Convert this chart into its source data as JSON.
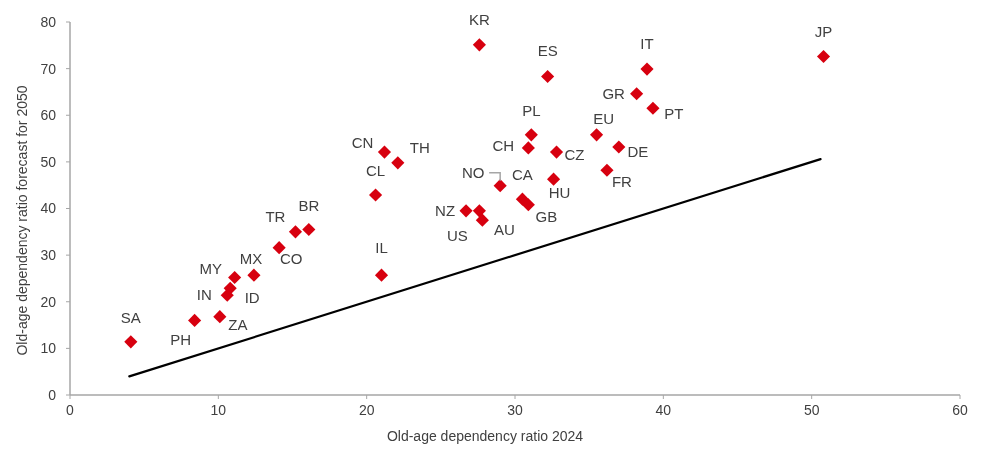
{
  "chart_data": {
    "type": "scatter",
    "xlabel": "Old-age dependency ratio 2024",
    "ylabel": "Old-age dependency ratio forecast for 2050",
    "xlim": [
      0,
      60
    ],
    "xticks": [
      0,
      10,
      20,
      30,
      40,
      50,
      60
    ],
    "ylim": [
      0,
      80
    ],
    "yticks": [
      0,
      10,
      20,
      30,
      40,
      50,
      60,
      70,
      80
    ],
    "grid": false,
    "series": [
      {
        "color": "#d7000f",
        "marker": "diamond",
        "x": [
          4.1,
          8.4,
          10.1,
          10.6,
          10.8,
          11.1,
          12.4,
          14.1,
          15.2,
          16.1,
          21.0,
          20.6,
          22.1,
          21.2,
          27.6,
          32.2,
          38.9,
          38.2,
          39.3,
          31.1,
          30.9,
          35.5,
          37.0,
          32.8,
          36.2,
          32.6,
          29.0,
          30.5,
          30.9,
          26.7,
          27.6,
          27.8,
          50.8
        ],
        "values": [
          11.4,
          16.0,
          16.8,
          21.4,
          22.9,
          25.2,
          25.7,
          31.6,
          35.0,
          35.5,
          25.7,
          42.9,
          49.8,
          52.1,
          75.1,
          68.3,
          69.9,
          64.6,
          61.5,
          55.8,
          53.0,
          55.8,
          53.2,
          52.1,
          48.2,
          46.3,
          44.9,
          42.0,
          40.8,
          39.5,
          39.5,
          37.5,
          72.6
        ]
      },
      {
        "type": "line",
        "color": "#000000",
        "x": [
          4.0,
          50.6
        ],
        "values": [
          4.0,
          50.6
        ],
        "line_style": "solid",
        "marker": "none"
      }
    ],
    "annotations": [
      {
        "text": "SA",
        "x": 4.1,
        "y": 11.4
      },
      {
        "text": "PH",
        "x": 8.4,
        "y": 16.0
      },
      {
        "text": "ZA",
        "x": 10.1,
        "y": 16.8
      },
      {
        "text": "IN",
        "x": 10.6,
        "y": 21.4
      },
      {
        "text": "ID",
        "x": 10.8,
        "y": 22.9
      },
      {
        "text": "MY",
        "x": 11.1,
        "y": 25.2
      },
      {
        "text": "MX",
        "x": 12.4,
        "y": 25.7
      },
      {
        "text": "CO",
        "x": 14.1,
        "y": 31.6
      },
      {
        "text": "TR",
        "x": 15.2,
        "y": 35.0
      },
      {
        "text": "BR",
        "x": 16.1,
        "y": 35.5
      },
      {
        "text": "IL",
        "x": 21.0,
        "y": 25.7
      },
      {
        "text": "CL",
        "x": 20.6,
        "y": 42.9
      },
      {
        "text": "TH",
        "x": 22.1,
        "y": 49.8
      },
      {
        "text": "CN",
        "x": 21.2,
        "y": 52.1
      },
      {
        "text": "KR",
        "x": 27.6,
        "y": 75.1
      },
      {
        "text": "ES",
        "x": 32.2,
        "y": 68.3
      },
      {
        "text": "IT",
        "x": 38.9,
        "y": 69.9
      },
      {
        "text": "GR",
        "x": 38.2,
        "y": 64.6
      },
      {
        "text": "PT",
        "x": 39.3,
        "y": 61.5
      },
      {
        "text": "PL",
        "x": 31.1,
        "y": 55.8
      },
      {
        "text": "CH",
        "x": 30.9,
        "y": 53.0
      },
      {
        "text": "EU",
        "x": 35.5,
        "y": 55.8
      },
      {
        "text": "DE",
        "x": 37.0,
        "y": 53.2
      },
      {
        "text": "CZ",
        "x": 32.8,
        "y": 52.1
      },
      {
        "text": "FR",
        "x": 36.2,
        "y": 48.2
      },
      {
        "text": "HU",
        "x": 32.6,
        "y": 46.3
      },
      {
        "text": "NO",
        "x": 29.0,
        "y": 44.9
      },
      {
        "text": "CA",
        "x": 30.5,
        "y": 42.0
      },
      {
        "text": "GB",
        "x": 30.9,
        "y": 40.8
      },
      {
        "text": "NZ",
        "x": 26.7,
        "y": 39.5
      },
      {
        "text": "US",
        "x": 27.6,
        "y": 39.5
      },
      {
        "text": "AU",
        "x": 27.8,
        "y": 37.5
      },
      {
        "text": "JP",
        "x": 50.8,
        "y": 72.6
      }
    ]
  }
}
